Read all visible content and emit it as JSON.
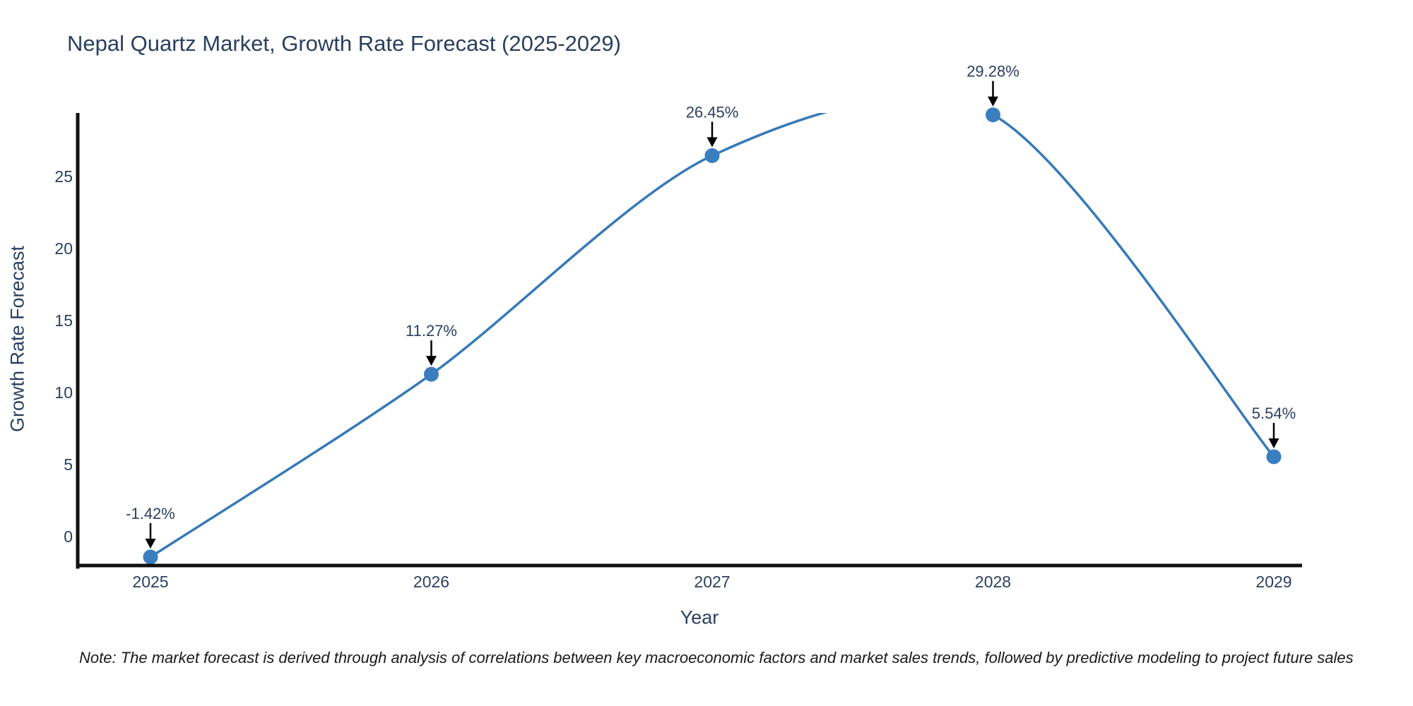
{
  "note": "Note: The market forecast is derived through analysis of correlations between key macroeconomic factors and market sales trends, followed by predictive modeling to project future sales",
  "chart_data": {
    "type": "line",
    "title": "Nepal Quartz Market, Growth Rate Forecast (2025-2029)",
    "xlabel": "Year",
    "ylabel": "Growth Rate Forecast",
    "x": [
      2025,
      2026,
      2027,
      2028,
      2029
    ],
    "series": [
      {
        "name": "Growth Rate Forecast",
        "values": [
          -1.42,
          11.27,
          26.45,
          29.28,
          5.54
        ]
      }
    ],
    "point_labels": [
      "-1.42%",
      "11.27%",
      "26.45%",
      "29.28%",
      "5.54%"
    ],
    "yticks": [
      0,
      5,
      10,
      15,
      20,
      25
    ],
    "ylim": [
      -2.1,
      29.41
    ],
    "grid": false,
    "legend": "none",
    "line_shape": "spline",
    "annotations_have_arrows": true,
    "colors": {
      "line": "#3779b8",
      "marker": "#3a7ebf",
      "axis": "#111111",
      "tick_text": "#2a3f5f",
      "annotation_text": "#2a3f5f",
      "arrow": "#000000",
      "title_text": "#2a3f5f",
      "note_text": "#1a1a1a",
      "background": "#ffffff"
    }
  }
}
